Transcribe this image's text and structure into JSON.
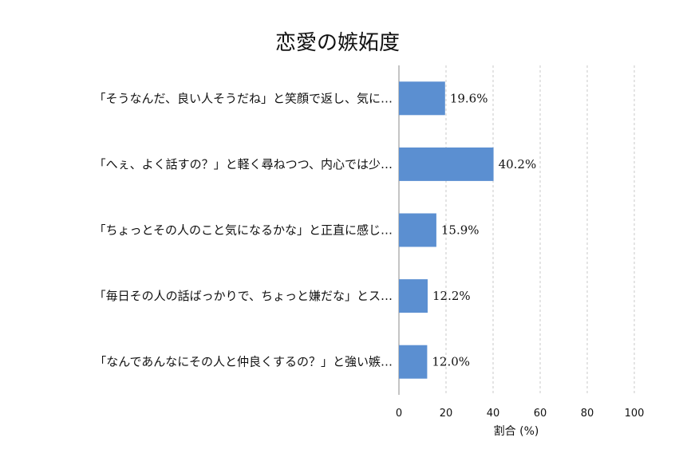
{
  "chart_data": {
    "type": "bar",
    "orientation": "horizontal",
    "title": "恋愛の嫉妬度",
    "xlabel": "割合 (%)",
    "ylabel": "",
    "xlim": [
      0,
      100
    ],
    "xticks": [
      "0",
      "20",
      "40",
      "60",
      "80",
      "100"
    ],
    "grid": true,
    "bar_color": "#5b8fd1",
    "categories": [
      "「そうなんだ、良い人そうだね」と笑顔で返し、気に…",
      "「へぇ、よく話すの？」と軽く尋ねつつ、内心では少…",
      "「ちょっとその人のこと気になるかな」と正直に感じ…",
      "「毎日その人の話ばっかりで、ちょっと嫌だな」とス…",
      "「なんであんなにその人と仲良くするの？」と強い嫉…"
    ],
    "values": [
      19.6,
      40.2,
      15.9,
      12.2,
      12.0
    ],
    "value_labels": [
      "19.6%",
      "40.2%",
      "15.9%",
      "12.2%",
      "12.0%"
    ]
  }
}
